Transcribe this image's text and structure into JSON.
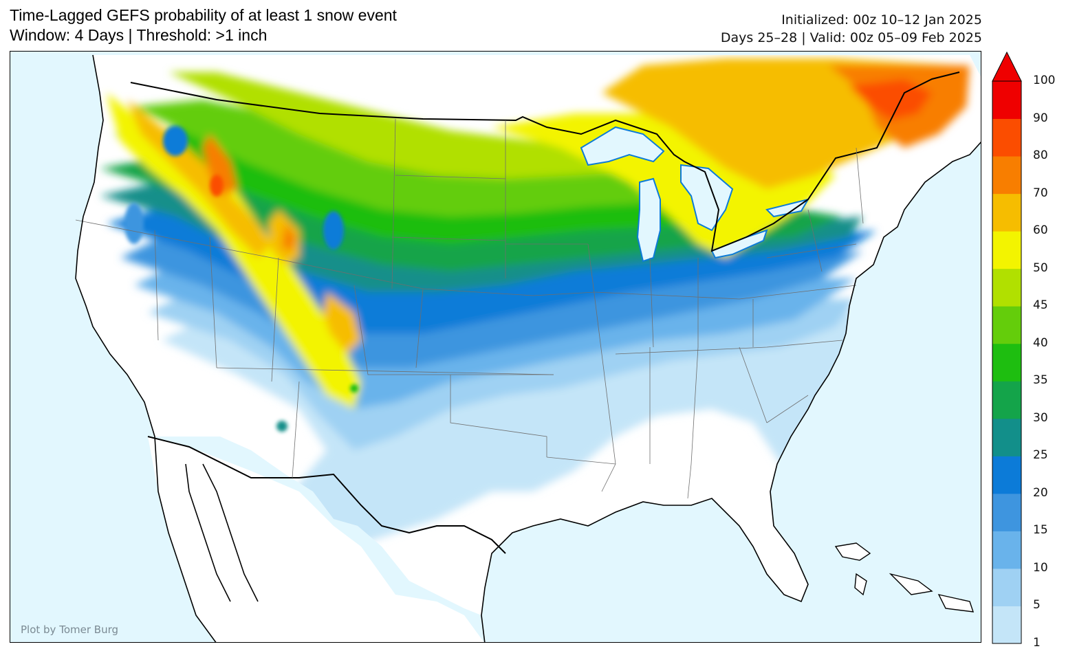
{
  "header": {
    "title_line1": "Time-Lagged GEFS probability of at least 1 snow event",
    "title_line2": "Window: 4 Days | Threshold: >1 inch",
    "init_line": "Initialized: 00z 10–12 Jan 2025",
    "valid_line": "Days 25–28 | Valid: 00z 05–09 Feb 2025"
  },
  "credit": "Plot by Tomer Burg",
  "colors": {
    "ocean": "#e2f7fe",
    "land_none": "#ffffff",
    "lake": "#e2f7fe",
    "border": "#000000",
    "state_line": "#6e6e6e"
  },
  "colorbar": {
    "levels": [
      1,
      5,
      10,
      15,
      20,
      25,
      30,
      35,
      40,
      45,
      50,
      60,
      70,
      80,
      90,
      100
    ],
    "labels": [
      "1",
      "5",
      "10",
      "15",
      "20",
      "25",
      "30",
      "35",
      "40",
      "45",
      "50",
      "60",
      "70",
      "80",
      "90",
      "100"
    ],
    "colors": [
      "#c4e5f8",
      "#9fd1f3",
      "#69b3eb",
      "#3e95df",
      "#0c7bd8",
      "#128f8a",
      "#14a44a",
      "#1ebe10",
      "#64cd0b",
      "#b1e000",
      "#f3f400",
      "#f6bd00",
      "#f87e00",
      "#fb4d00",
      "#ef0000"
    ],
    "extend_color": "#ef0000"
  }
}
